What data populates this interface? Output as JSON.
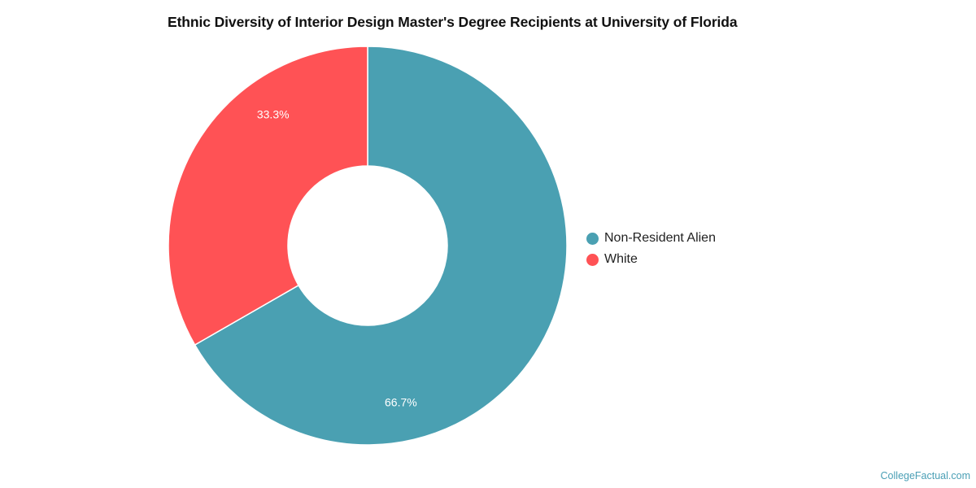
{
  "title": "Ethnic Diversity of Interior Design Master's Degree Recipients at University of Florida",
  "watermark": "CollegeFactual.com",
  "chart_data": {
    "type": "pie",
    "donut": true,
    "title": "Ethnic Diversity of Interior Design Master's Degree Recipients at University of Florida",
    "legend_position": "right",
    "slices": [
      {
        "name": "Non-Resident Alien",
        "value": 66.7,
        "label": "66.7%",
        "color": "#4aa0b2"
      },
      {
        "name": "White",
        "value": 33.3,
        "label": "33.3%",
        "color": "#ff5255"
      }
    ]
  }
}
